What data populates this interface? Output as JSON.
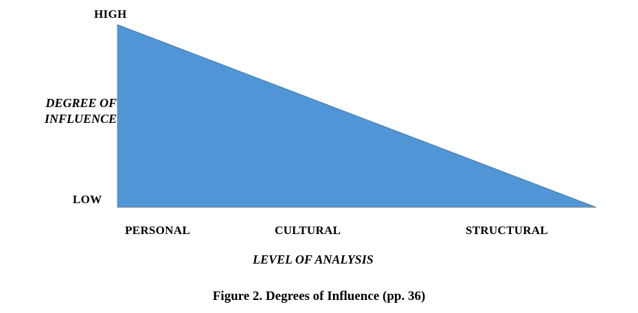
{
  "diagram": {
    "y_axis": {
      "title_lines": [
        "DEGREE OF",
        "INFLUENCE"
      ],
      "high_label": "HIGH",
      "low_label": "LOW"
    },
    "x_axis": {
      "title": "LEVEL OF ANALYSIS",
      "categories": [
        "PERSONAL",
        "CULTURAL",
        "STRUCTURAL"
      ]
    },
    "shape": {
      "type": "right triangle",
      "description_of_values": "influence decreases linearly from HIGH at PERSONAL to LOW at STRUCTURAL"
    },
    "colors": {
      "fill": "#5096d6",
      "stroke": "#3f77ad",
      "axis": "#7f7f7f"
    },
    "caption": "Figure 2. Degrees of Influence (pp. 36)"
  }
}
